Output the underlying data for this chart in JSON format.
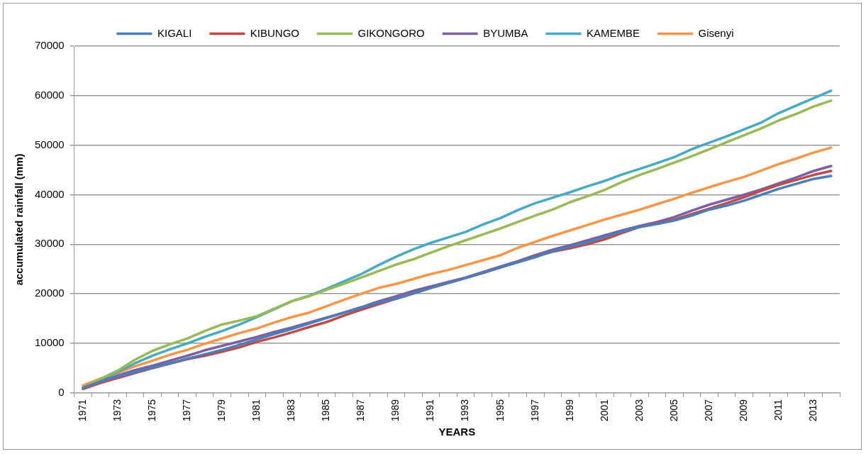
{
  "chart_data": {
    "type": "line",
    "xlabel": "YEARS",
    "ylabel": "accumulated rainfall (mm)",
    "categories": [
      "1971",
      null,
      "1973",
      null,
      "1975",
      null,
      "1977",
      null,
      "1979",
      null,
      "1981",
      null,
      "1983",
      null,
      "1985",
      null,
      "1987",
      null,
      "1989",
      null,
      "1991",
      null,
      "1993",
      null,
      "1995",
      null,
      "1997",
      null,
      "1999",
      null,
      "2001",
      null,
      "2003",
      null,
      "2005",
      null,
      "2007",
      null,
      "2009",
      null,
      "2011",
      null,
      "2013",
      null
    ],
    "series": [
      {
        "name": "KIGALI",
        "color": "#4a7ebb",
        "values": [
          1000,
          2300,
          3300,
          4200,
          5100,
          6000,
          6900,
          7800,
          8700,
          9700,
          10800,
          11900,
          12900,
          14000,
          15100,
          16200,
          17200,
          18200,
          19000,
          20100,
          21200,
          22200,
          23200,
          24300,
          25400,
          26400,
          27400,
          28600,
          29500,
          30400,
          31500,
          32600,
          33500,
          34100,
          34800,
          35800,
          37000,
          37800,
          38800,
          40000,
          41200,
          42200,
          43200,
          43800
        ]
      },
      {
        "name": "KIBUNGO",
        "color": "#be4b48",
        "values": [
          800,
          2000,
          3000,
          4000,
          5000,
          5900,
          6800,
          7500,
          8300,
          9200,
          10300,
          11200,
          12200,
          13300,
          14300,
          15600,
          16800,
          17900,
          19000,
          20100,
          21200,
          22200,
          23200,
          24200,
          25300,
          26400,
          27500,
          28500,
          29200,
          30000,
          31000,
          32300,
          33500,
          34200,
          35000,
          36100,
          37200,
          38300,
          39500,
          40800,
          42000,
          43000,
          44000,
          44800
        ]
      },
      {
        "name": "GIKONGORO",
        "color": "#98b954",
        "values": [
          1000,
          2800,
          4500,
          6700,
          8500,
          9800,
          11000,
          12500,
          13800,
          14600,
          15500,
          17000,
          18500,
          19500,
          20800,
          22000,
          23300,
          24600,
          25900,
          27000,
          28300,
          29600,
          30800,
          32000,
          33200,
          34500,
          35800,
          37000,
          38500,
          39700,
          41000,
          42600,
          44000,
          45200,
          46500,
          47800,
          49200,
          50600,
          52000,
          53400,
          55000,
          56300,
          57800,
          59000
        ]
      },
      {
        "name": "BYUMBA",
        "color": "#7d60a0",
        "values": [
          1000,
          2400,
          3500,
          4600,
          5500,
          6500,
          7500,
          8600,
          9500,
          10400,
          11300,
          12300,
          13200,
          14200,
          15200,
          16200,
          17300,
          18500,
          19500,
          20600,
          21500,
          22400,
          23300,
          24400,
          25500,
          26600,
          27800,
          28900,
          29800,
          30800,
          31800,
          32800,
          33700,
          34500,
          35500,
          36800,
          38000,
          39000,
          40000,
          41100,
          42300,
          43500,
          44800,
          45800
        ]
      },
      {
        "name": "KAMEMBE",
        "color": "#46aac5",
        "values": [
          1000,
          2700,
          4200,
          6000,
          7500,
          8800,
          10000,
          11300,
          12500,
          13800,
          15300,
          16900,
          18500,
          19600,
          21000,
          22500,
          24000,
          25800,
          27500,
          29000,
          30300,
          31400,
          32500,
          34000,
          35300,
          36900,
          38300,
          39400,
          40500,
          41700,
          42800,
          44100,
          45200,
          46400,
          47600,
          49200,
          50500,
          51800,
          53200,
          54600,
          56500,
          58000,
          59500,
          61000
        ]
      },
      {
        "name": "Gisenyi",
        "color": "#f79646",
        "values": [
          1500,
          2900,
          4000,
          5400,
          6500,
          7700,
          8700,
          9900,
          11000,
          12100,
          13000,
          14200,
          15300,
          16200,
          17500,
          18800,
          20000,
          21200,
          22000,
          23000,
          24000,
          24800,
          25800,
          26800,
          27800,
          29300,
          30500,
          31700,
          32800,
          33900,
          35000,
          36000,
          37000,
          38100,
          39200,
          40400,
          41500,
          42600,
          43600,
          44900,
          46200,
          47300,
          48500,
          49500
        ]
      }
    ],
    "ylim": [
      0,
      70000
    ],
    "yticks": [
      0,
      10000,
      20000,
      30000,
      40000,
      50000,
      60000,
      70000
    ],
    "grid": "y",
    "legend": "top",
    "marker": "none",
    "line_style": "solid"
  }
}
